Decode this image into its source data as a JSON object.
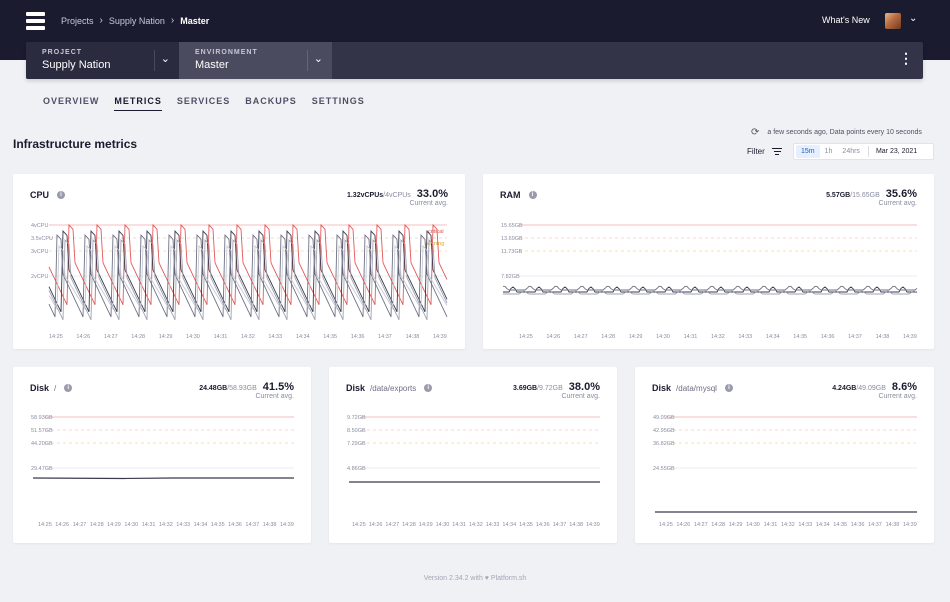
{
  "breadcrumbs": [
    "Projects",
    "Supply Nation",
    "Master"
  ],
  "header": {
    "whats_new": "What's New"
  },
  "selectors": {
    "project": {
      "label": "PROJECT",
      "value": "Supply Nation"
    },
    "environment": {
      "label": "ENVIRONMENT",
      "value": "Master"
    }
  },
  "tabs": [
    "OVERVIEW",
    "METRICS",
    "SERVICES",
    "BACKUPS",
    "SETTINGS"
  ],
  "active_tab": "METRICS",
  "section": {
    "title": "Infrastructure metrics",
    "refresh_text": "a few seconds ago, Data points every 10 seconds",
    "filter_label": "Filter",
    "ranges": [
      "15m",
      "1h",
      "24hrs"
    ],
    "active_range": "15m",
    "date": "Mar 23, 2021"
  },
  "cards": {
    "cpu": {
      "title": "CPU",
      "path": "",
      "used": "1.32vCPUs",
      "total": "/4vCPUs",
      "percent": "33.0%",
      "sub": "Current avg.",
      "y_labels": [
        "4vCPU",
        "3.5vCPU",
        "3vCPU",
        "2vCPU"
      ],
      "critical_label": "critical",
      "warning_label": "warning"
    },
    "ram": {
      "title": "RAM",
      "path": "",
      "used": "5.57GB",
      "total": "/15.65GB",
      "percent": "35.6%",
      "sub": "Current avg.",
      "y_labels": [
        "15.65GB",
        "13.69GB",
        "11.73GB",
        "7.82GB"
      ]
    },
    "disk_root": {
      "title": "Disk",
      "path": "/",
      "used": "24.48GB",
      "total": "/58.93GB",
      "percent": "41.5%",
      "sub": "Current avg.",
      "y_labels": [
        "58.93GB",
        "51.57GB",
        "44.20GB",
        "29.47GB"
      ]
    },
    "disk_exports": {
      "title": "Disk",
      "path": "/data/exports",
      "used": "3.69GB",
      "total": "/9.72GB",
      "percent": "38.0%",
      "sub": "Current avg.",
      "y_labels": [
        "9.72GB",
        "8.50GB",
        "7.29GB",
        "4.86GB"
      ]
    },
    "disk_mysql": {
      "title": "Disk",
      "path": "/data/mysql",
      "used": "4.24GB",
      "total": "/49.09GB",
      "percent": "8.6%",
      "sub": "Current avg.",
      "y_labels": [
        "49.09GB",
        "42.95GB",
        "36.82GB",
        "24.55GB"
      ]
    }
  },
  "x_labels": [
    "14:25",
    "14:26",
    "14:27",
    "14:28",
    "14:29",
    "14:30",
    "14:31",
    "14:32",
    "14:33",
    "14:34",
    "14:35",
    "14:36",
    "14:37",
    "14:38",
    "14:39"
  ],
  "footer": "Version 2.34.2 with ♥ Platform.sh",
  "colors": {
    "critical": "#f4b3b3",
    "warning": "#f6dc8a",
    "dark": "#1a1b2e"
  }
}
